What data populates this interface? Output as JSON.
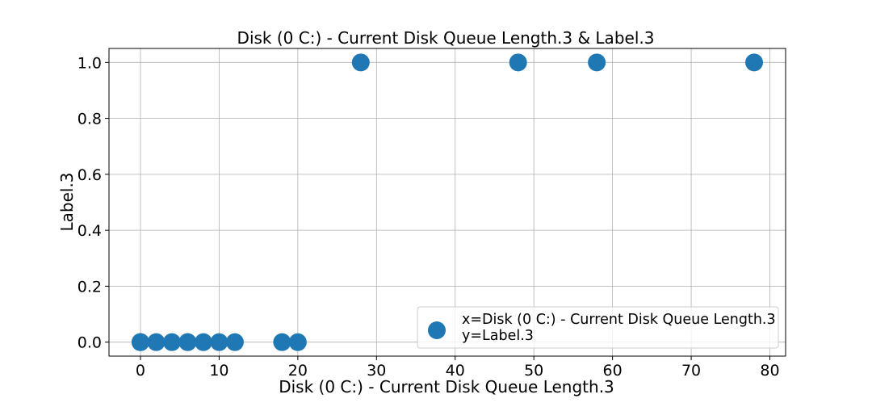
{
  "chart_data": {
    "type": "scatter",
    "title": "Disk (0 C:) - Current Disk Queue Length.3 & Label.3",
    "xlabel": "Disk (0 C:) - Current Disk Queue Length.3",
    "ylabel": "Label.3",
    "xlim": [
      -4,
      82
    ],
    "ylim": [
      -0.05,
      1.05
    ],
    "xticks": [
      0,
      10,
      20,
      30,
      40,
      50,
      60,
      70,
      80
    ],
    "yticks": [
      0.0,
      0.2,
      0.4,
      0.6,
      0.8,
      1.0
    ],
    "xtick_labels": [
      "0",
      "10",
      "20",
      "30",
      "40",
      "50",
      "60",
      "70",
      "80"
    ],
    "ytick_labels": [
      "0.0",
      "0.2",
      "0.4",
      "0.6",
      "0.8",
      "1.0"
    ],
    "grid": true,
    "legend_position": "bottom-right",
    "legend_lines": [
      "x=Disk (0 C:) - Current Disk Queue Length.3",
      "y=Label.3"
    ],
    "marker_color": "#1f77b4",
    "series": [
      {
        "x": [
          0,
          0,
          0,
          2,
          4,
          6,
          6,
          8,
          10,
          12,
          18,
          20,
          28,
          48,
          58,
          78
        ],
        "y": [
          0,
          0,
          0,
          0,
          0,
          0,
          0,
          0,
          0,
          0,
          0,
          0,
          1,
          1,
          1,
          1
        ]
      }
    ]
  }
}
